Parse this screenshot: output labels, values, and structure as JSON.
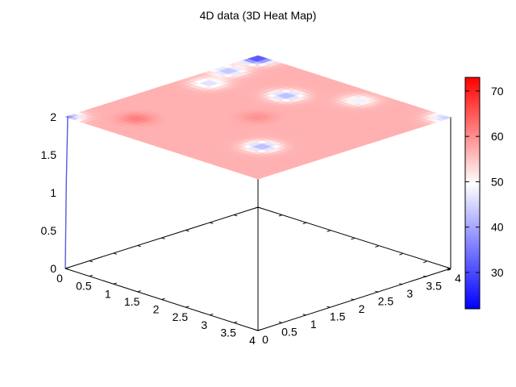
{
  "chart_data": {
    "type": "heatmap",
    "title": "4D data (3D Heat Map)",
    "x_ticks": [
      "0",
      "0.5",
      "1",
      "1.5",
      "2",
      "2.5",
      "3",
      "3.5",
      "4"
    ],
    "y_ticks": [
      "0",
      "0.5",
      "1",
      "1.5",
      "2",
      "2.5",
      "3",
      "3.5",
      "4"
    ],
    "z_ticks": [
      "0",
      "0.5",
      "1",
      "1.5",
      "2"
    ],
    "colorbar_ticks": [
      "30",
      "40",
      "50",
      "60",
      "70"
    ],
    "xlim": [
      0,
      4
    ],
    "ylim": [
      0,
      4
    ],
    "zlim": [
      0,
      2
    ],
    "surface_z": 2,
    "color_range": [
      22,
      73
    ],
    "colormap": {
      "low": "#0000ff",
      "mid": "#ffffff",
      "high": "#ff0000"
    },
    "base_value": 57,
    "features": [
      {
        "x": 0.8,
        "y": 0.7,
        "value": 62
      },
      {
        "x": 2.0,
        "y": 2.0,
        "value": 60
      },
      {
        "x": 3.0,
        "y": 1.1,
        "value": 42
      },
      {
        "x": 1.6,
        "y": 3.0,
        "value": 42
      },
      {
        "x": 3.95,
        "y": 3.95,
        "value": 45
      },
      {
        "x": 0.1,
        "y": 3.9,
        "value": 30
      },
      {
        "x": 0.2,
        "y": 3.2,
        "value": 43
      },
      {
        "x": 0.4,
        "y": 2.6,
        "value": 46
      },
      {
        "x": 0.0,
        "y": 0.0,
        "value": 38
      },
      {
        "x": 2.5,
        "y": 3.6,
        "value": 48
      }
    ]
  }
}
